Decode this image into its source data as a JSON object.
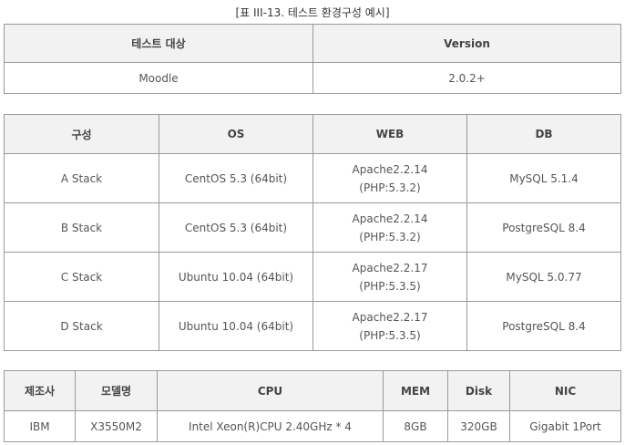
{
  "caption": "[표 III-13. 테스트 환경구성 예시]",
  "target_table": {
    "headers": [
      "테스트 대상",
      "Version"
    ],
    "row": [
      "Moodle",
      "2.0.2+"
    ]
  },
  "stack_table": {
    "headers": [
      "구성",
      "OS",
      "WEB",
      "DB"
    ],
    "rows": [
      {
        "name": "A Stack",
        "os": "CentOS 5.3 (64bit)",
        "web": "Apache2.2.14",
        "php": "(PHP:5.3.2)",
        "db": "MySQL 5.1.4"
      },
      {
        "name": "B Stack",
        "os": "CentOS 5.3 (64bit)",
        "web": "Apache2.2.14",
        "php": "(PHP:5.3.2)",
        "db": "PostgreSQL 8.4"
      },
      {
        "name": "C Stack",
        "os": "Ubuntu 10.04 (64bit)",
        "web": "Apache2.2.17",
        "php": "(PHP:5.3.5)",
        "db": "MySQL 5.0.77"
      },
      {
        "name": "D Stack",
        "os": "Ubuntu 10.04 (64bit)",
        "web": "Apache2.2.17",
        "php": "(PHP:5.3.5)",
        "db": "PostgreSQL 8.4"
      }
    ]
  },
  "hardware_table": {
    "headers": [
      "제조사",
      "모델명",
      "CPU",
      "MEM",
      "Disk",
      "NIC"
    ],
    "row": [
      "IBM",
      "X3550M2",
      "Intel Xeon(R)CPU 2.40GHz * 4",
      "8GB",
      "320GB",
      "Gigabit 1Port"
    ]
  }
}
